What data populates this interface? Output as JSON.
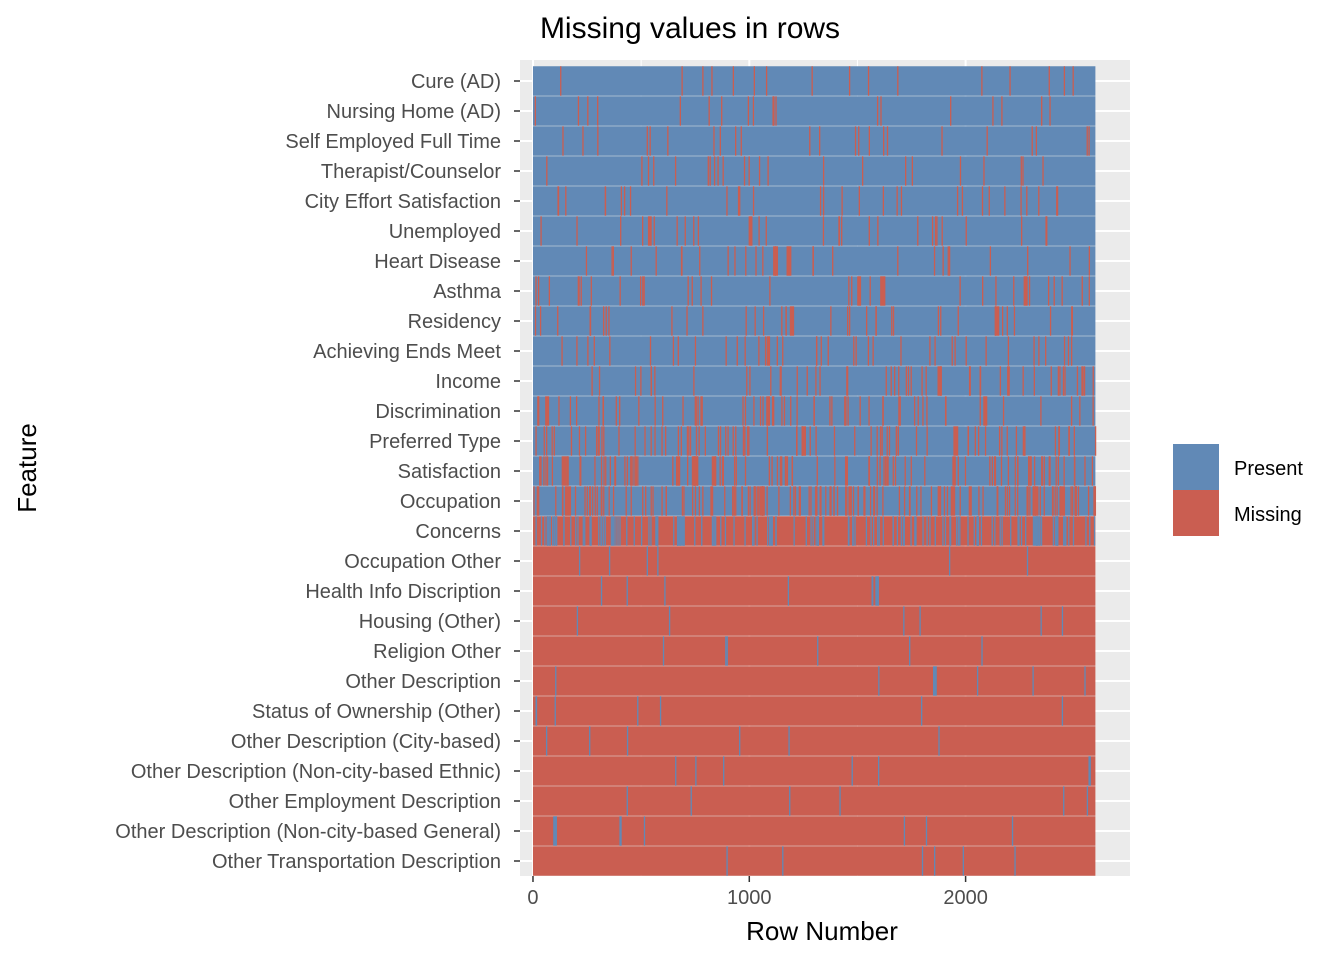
{
  "chart_data": {
    "type": "heatmap",
    "title": "Missing values in rows",
    "xlabel": "Row Number",
    "ylabel": "Feature",
    "xlim": [
      -60,
      2760
    ],
    "row_count": 2600,
    "x_ticks": [
      0,
      1000,
      2000
    ],
    "x_tick_labels": [
      "0",
      "1000",
      "2000"
    ],
    "grid": true,
    "legend_position": "right",
    "legend": [
      {
        "label": "Present",
        "color": "#6189B6"
      },
      {
        "label": "Missing",
        "color": "#CA5E51"
      }
    ],
    "colors": {
      "present": "#6189B6",
      "missing": "#CA5E51",
      "panel": "#EBEBEB"
    },
    "features": [
      {
        "name": "Cure (AD)",
        "missing_fraction": 0.04
      },
      {
        "name": "Nursing Home (AD)",
        "missing_fraction": 0.05
      },
      {
        "name": "Self Employed Full Time",
        "missing_fraction": 0.06
      },
      {
        "name": "Therapist/Counselor",
        "missing_fraction": 0.06
      },
      {
        "name": "City Effort Satisfaction",
        "missing_fraction": 0.07
      },
      {
        "name": "Unemployed",
        "missing_fraction": 0.07
      },
      {
        "name": "Heart Disease",
        "missing_fraction": 0.07
      },
      {
        "name": "Asthma",
        "missing_fraction": 0.08
      },
      {
        "name": "Residency",
        "missing_fraction": 0.09
      },
      {
        "name": "Achieving Ends Meet",
        "missing_fraction": 0.1
      },
      {
        "name": "Income",
        "missing_fraction": 0.12
      },
      {
        "name": "Discrimination",
        "missing_fraction": 0.15
      },
      {
        "name": "Preferred Type",
        "missing_fraction": 0.2
      },
      {
        "name": "Satisfaction",
        "missing_fraction": 0.25
      },
      {
        "name": "Occupation",
        "missing_fraction": 0.35
      },
      {
        "name": "Concerns",
        "missing_fraction": 0.65
      },
      {
        "name": "Occupation Other",
        "missing_fraction": 0.99
      },
      {
        "name": "Health Info Discription",
        "missing_fraction": 0.985
      },
      {
        "name": "Housing (Other)",
        "missing_fraction": 0.99
      },
      {
        "name": "Religion Other",
        "missing_fraction": 0.99
      },
      {
        "name": "Other Description",
        "missing_fraction": 0.99
      },
      {
        "name": "Status of Ownership (Other)",
        "missing_fraction": 0.99
      },
      {
        "name": "Other Description (City-based)",
        "missing_fraction": 0.995
      },
      {
        "name": "Other Description (Non-city-based Ethnic)",
        "missing_fraction": 0.995
      },
      {
        "name": "Other Employment Description",
        "missing_fraction": 0.996
      },
      {
        "name": "Other Description (Non-city-based General)",
        "missing_fraction": 0.995
      },
      {
        "name": "Other Transportation Description",
        "missing_fraction": 0.999
      }
    ]
  }
}
